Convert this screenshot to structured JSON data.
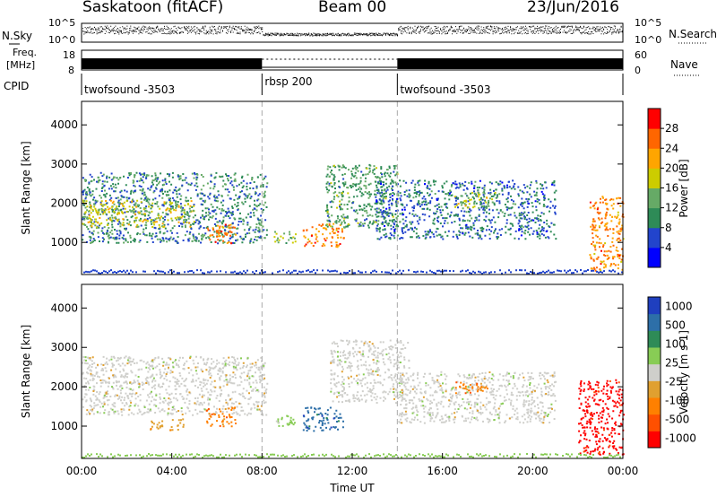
{
  "header": {
    "site": "Saskatoon (fitACF)",
    "beam": "Beam 00",
    "date": "23/Jun/2016"
  },
  "noise_panel": {
    "left_label": "N.Sky",
    "right_label": "N.Search",
    "left_ticks": [
      "10^5",
      "10^0"
    ],
    "right_ticks": [
      "10^5",
      "10^0"
    ]
  },
  "freq_panel": {
    "left_label_top": "Freq.",
    "left_label_unit": "[MHz]",
    "left_ticks": [
      "18",
      "8"
    ],
    "right_label": "Nave",
    "right_ticks": [
      "60",
      "0"
    ]
  },
  "cpid": {
    "label": "CPID",
    "segments": [
      {
        "name": "twofsound -3503",
        "start_hour": 0,
        "end_hour": 8
      },
      {
        "name": "rbsp 200",
        "start_hour": 8,
        "end_hour": 14
      },
      {
        "name": "twofsound -3503",
        "start_hour": 14,
        "end_hour": 24
      }
    ]
  },
  "colors": {
    "power_scale": [
      "#0000ff",
      "#2244cc",
      "#2e8b57",
      "#66aa66",
      "#cccc00",
      "#ffa500",
      "#ff6600",
      "#ff0000"
    ],
    "velocity_scale": [
      "#1f3fbf",
      "#2d6fa8",
      "#2e8b57",
      "#88cc55",
      "#cfcfcb",
      "#e0a030",
      "#ff8000",
      "#ff5000",
      "#ff0000"
    ],
    "dashed_marker": "#aaaaaa"
  },
  "chart_data": [
    {
      "type": "heatmap",
      "title": "",
      "xlabel": "Time UT",
      "ylabel": "Slant Range [km]",
      "xlim": [
        0,
        24
      ],
      "ylim": [
        180,
        4600
      ],
      "x_ticks": [
        "00:00",
        "04:00",
        "08:00",
        "12:00",
        "16:00",
        "20:00",
        "00:00"
      ],
      "x_tick_hours": [
        0,
        4,
        8,
        12,
        16,
        20,
        24
      ],
      "y_ticks": [
        1000,
        2000,
        3000,
        4000
      ],
      "colorbar": {
        "label": "Power [dB]",
        "range": [
          0,
          32
        ],
        "ticks": [
          4,
          8,
          12,
          16,
          20,
          24,
          28
        ]
      },
      "regions": [
        {
          "t0": 0.0,
          "t1": 8.2,
          "r0": 1000,
          "r1": 2800,
          "level": 10
        },
        {
          "t0": 0.0,
          "t1": 5.0,
          "r0": 1400,
          "r1": 2100,
          "level": 18
        },
        {
          "t0": 5.5,
          "t1": 6.8,
          "r0": 1000,
          "r1": 1500,
          "level": 24
        },
        {
          "t0": 8.5,
          "t1": 9.5,
          "r0": 1000,
          "r1": 1300,
          "level": 16
        },
        {
          "t0": 9.8,
          "t1": 11.6,
          "r0": 900,
          "r1": 1500,
          "level": 24
        },
        {
          "t0": 10.8,
          "t1": 14.0,
          "r0": 1400,
          "r1": 3000,
          "level": 12
        },
        {
          "t0": 13.0,
          "t1": 21.0,
          "r0": 1100,
          "r1": 2600,
          "level": 8
        },
        {
          "t0": 16.5,
          "t1": 18.5,
          "r0": 1900,
          "r1": 2300,
          "level": 16
        },
        {
          "t0": 22.5,
          "t1": 24.0,
          "r0": 300,
          "r1": 2200,
          "level": 24
        }
      ]
    },
    {
      "type": "heatmap",
      "title": "",
      "xlabel": "Time UT",
      "ylabel": "Slant Range [km]",
      "xlim": [
        0,
        24
      ],
      "ylim": [
        180,
        4600
      ],
      "x_ticks": [
        "00:00",
        "04:00",
        "08:00",
        "12:00",
        "16:00",
        "20:00",
        "00:00"
      ],
      "x_tick_hours": [
        0,
        4,
        8,
        12,
        16,
        20,
        24
      ],
      "y_ticks": [
        1000,
        2000,
        3000,
        4000
      ],
      "colorbar": {
        "label": "Velocity [m s-1]",
        "ticks": [
          "1000",
          "500",
          "100",
          "25",
          "-25",
          "-100",
          "-500",
          "-1000"
        ]
      },
      "regions": [
        {
          "t0": 0.0,
          "t1": 8.2,
          "r0": 1300,
          "r1": 2800,
          "velocity": 0
        },
        {
          "t0": 3.0,
          "t1": 4.5,
          "r0": 900,
          "r1": 1200,
          "velocity": -150
        },
        {
          "t0": 5.5,
          "t1": 6.8,
          "r0": 1000,
          "r1": 1500,
          "velocity": -400
        },
        {
          "t0": 8.5,
          "t1": 9.5,
          "r0": 1000,
          "r1": 1300,
          "velocity": 150
        },
        {
          "t0": 9.8,
          "t1": 11.6,
          "r0": 900,
          "r1": 1500,
          "velocity": 300
        },
        {
          "t0": 11.0,
          "t1": 14.5,
          "r0": 1600,
          "r1": 3200,
          "velocity": 0
        },
        {
          "t0": 14.0,
          "t1": 21.0,
          "r0": 1100,
          "r1": 2400,
          "velocity": 0
        },
        {
          "t0": 16.5,
          "t1": 18.0,
          "r0": 1850,
          "r1": 2150,
          "velocity": -200
        },
        {
          "t0": 22.0,
          "t1": 24.0,
          "r0": 300,
          "r1": 2200,
          "velocity": -700
        }
      ]
    }
  ]
}
